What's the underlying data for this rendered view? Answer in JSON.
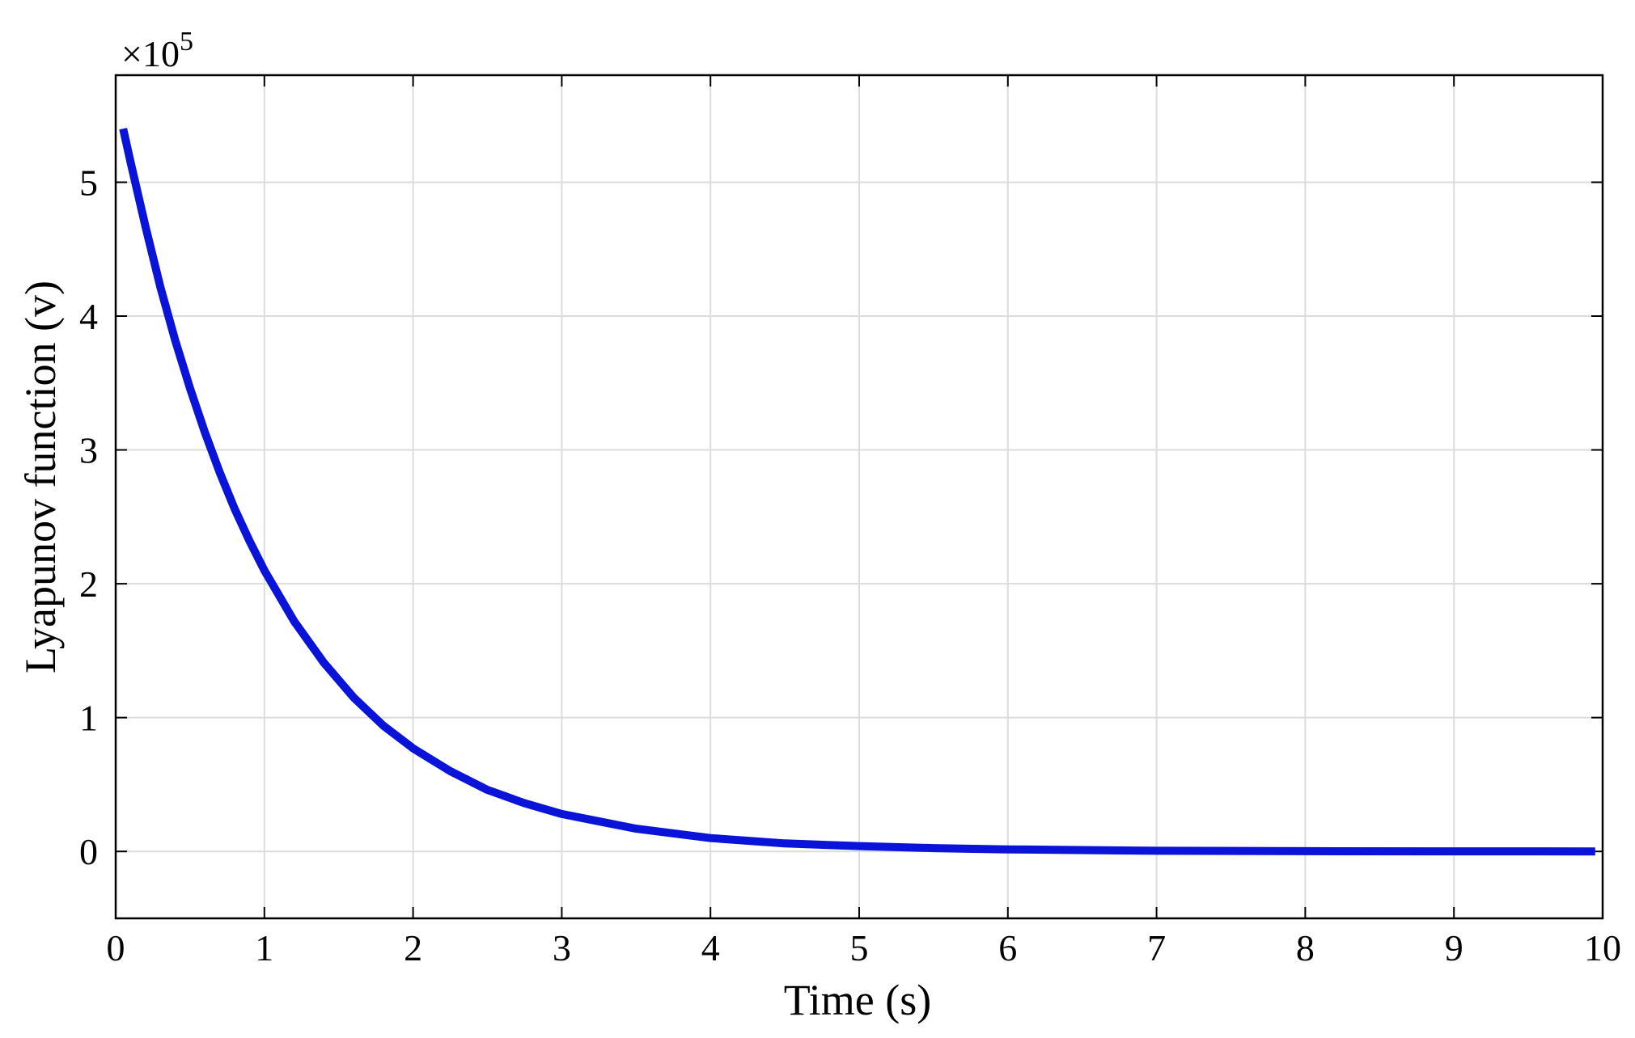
{
  "chart_data": {
    "type": "line",
    "xlabel": "Time (s)",
    "ylabel": "Lyapunov function (v)",
    "y_exponent_base": "×10",
    "y_exponent_power": "5",
    "xlim": [
      0,
      10
    ],
    "ylim": [
      -0.5,
      5.8
    ],
    "x_ticks": [
      0,
      1,
      2,
      3,
      4,
      5,
      6,
      7,
      8,
      9,
      10
    ],
    "y_ticks": [
      0,
      1,
      2,
      3,
      4,
      5
    ],
    "grid": true,
    "colors": {
      "line": "#0a14d8",
      "grid": "#dcdcdc",
      "axis": "#000000"
    },
    "series": [
      {
        "x": [
          0.05,
          0.1,
          0.2,
          0.3,
          0.4,
          0.5,
          0.6,
          0.7,
          0.8,
          0.9,
          1.0,
          1.2,
          1.4,
          1.6,
          1.8,
          2.0,
          2.25,
          2.5,
          2.75,
          3.0,
          3.5,
          4.0,
          4.5,
          5.0,
          5.5,
          6.0,
          7.0,
          8.0,
          9.0,
          9.95
        ],
        "y": [
          5.4,
          5.15,
          4.67,
          4.22,
          3.82,
          3.46,
          3.13,
          2.83,
          2.56,
          2.32,
          2.1,
          1.72,
          1.41,
          1.15,
          0.94,
          0.77,
          0.6,
          0.46,
          0.36,
          0.28,
          0.17,
          0.1,
          0.06,
          0.04,
          0.025,
          0.015,
          0.005,
          0.002,
          0.001,
          0.0
        ]
      }
    ]
  }
}
